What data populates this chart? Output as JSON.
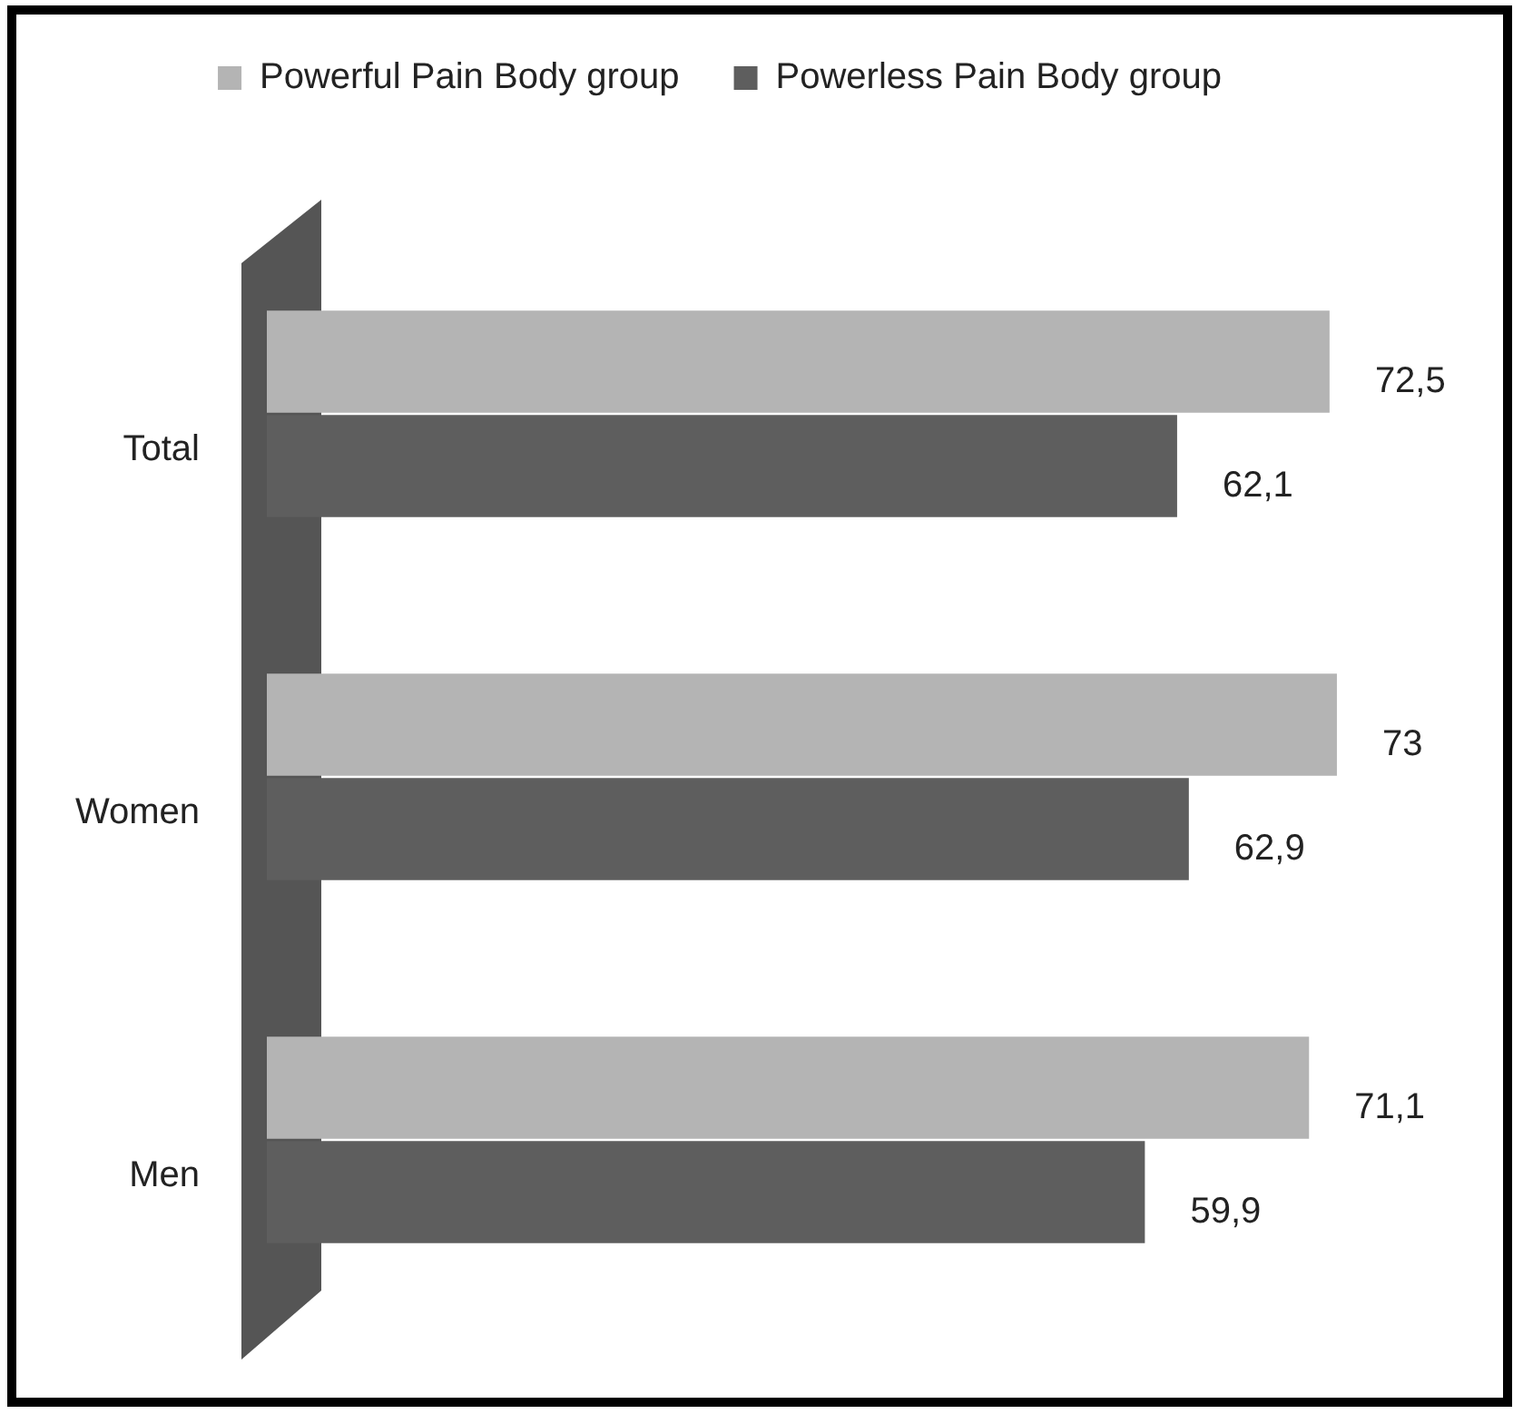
{
  "chart_data": {
    "type": "bar",
    "orientation": "horizontal",
    "categories": [
      "Total",
      "Women",
      "Men"
    ],
    "series": [
      {
        "name": "Powerful Pain Body group",
        "color": "#b4b4b4",
        "values": [
          72.5,
          73,
          71.1
        ],
        "value_labels": [
          "72,5",
          "73",
          "71,1"
        ]
      },
      {
        "name": "Powerless Pain Body group",
        "color": "#5e5e5e",
        "values": [
          62.1,
          62.9,
          59.9
        ],
        "value_labels": [
          "62,1",
          "62,9",
          "59,9"
        ]
      }
    ],
    "tick_labels": "y",
    "legend": "top",
    "grid": false
  }
}
